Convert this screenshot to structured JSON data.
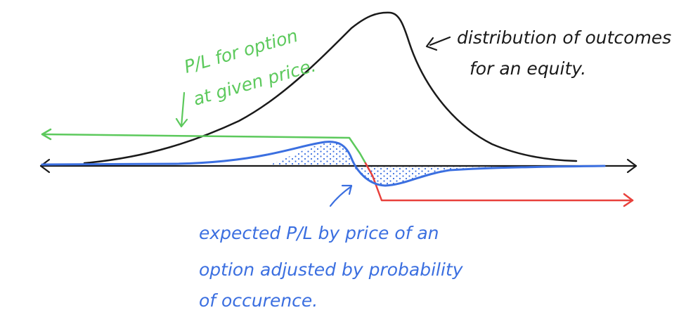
{
  "colors": {
    "ink": "#1a1a1a",
    "green": "#5cc95c",
    "blue": "#3b6fe0",
    "red": "#e8413c",
    "background": "#ffffff"
  },
  "annotations": {
    "distribution": {
      "line1": "distribution of outcomes",
      "line2": "for an equity."
    },
    "option_pl": {
      "line1": "P/L for option",
      "line2": "at given price."
    },
    "expected_pl": {
      "line1": "expected P/L by price of an",
      "line2": "option adjusted by probability",
      "line3": "of occurence."
    }
  }
}
